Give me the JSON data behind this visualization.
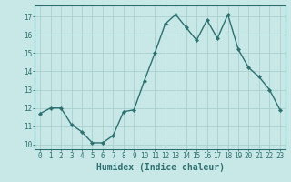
{
  "x": [
    0,
    1,
    2,
    3,
    4,
    5,
    6,
    7,
    8,
    9,
    10,
    11,
    12,
    13,
    14,
    15,
    16,
    17,
    18,
    19,
    20,
    21,
    22,
    23
  ],
  "y": [
    11.7,
    12.0,
    12.0,
    11.1,
    10.7,
    10.1,
    10.1,
    10.5,
    11.8,
    11.9,
    13.5,
    15.0,
    16.6,
    17.1,
    16.4,
    15.7,
    16.8,
    15.8,
    17.1,
    15.2,
    14.2,
    13.7,
    13.0,
    11.9
  ],
  "line_color": "#2d7070",
  "marker": "D",
  "marker_size": 2.2,
  "bg_color": "#c8e8e8",
  "grid_color_major": "#aad0d0",
  "grid_color_minor": "#b8dcdc",
  "xlabel": "Humidex (Indice chaleur)",
  "xlim": [
    -0.5,
    23.5
  ],
  "ylim": [
    9.75,
    17.6
  ],
  "yticks": [
    10,
    11,
    12,
    13,
    14,
    15,
    16,
    17
  ],
  "xticks": [
    0,
    1,
    2,
    3,
    4,
    5,
    6,
    7,
    8,
    9,
    10,
    11,
    12,
    13,
    14,
    15,
    16,
    17,
    18,
    19,
    20,
    21,
    22,
    23
  ],
  "tick_fontsize": 5.5,
  "xlabel_fontsize": 7,
  "spine_color": "#2d7070",
  "line_width": 1.0
}
